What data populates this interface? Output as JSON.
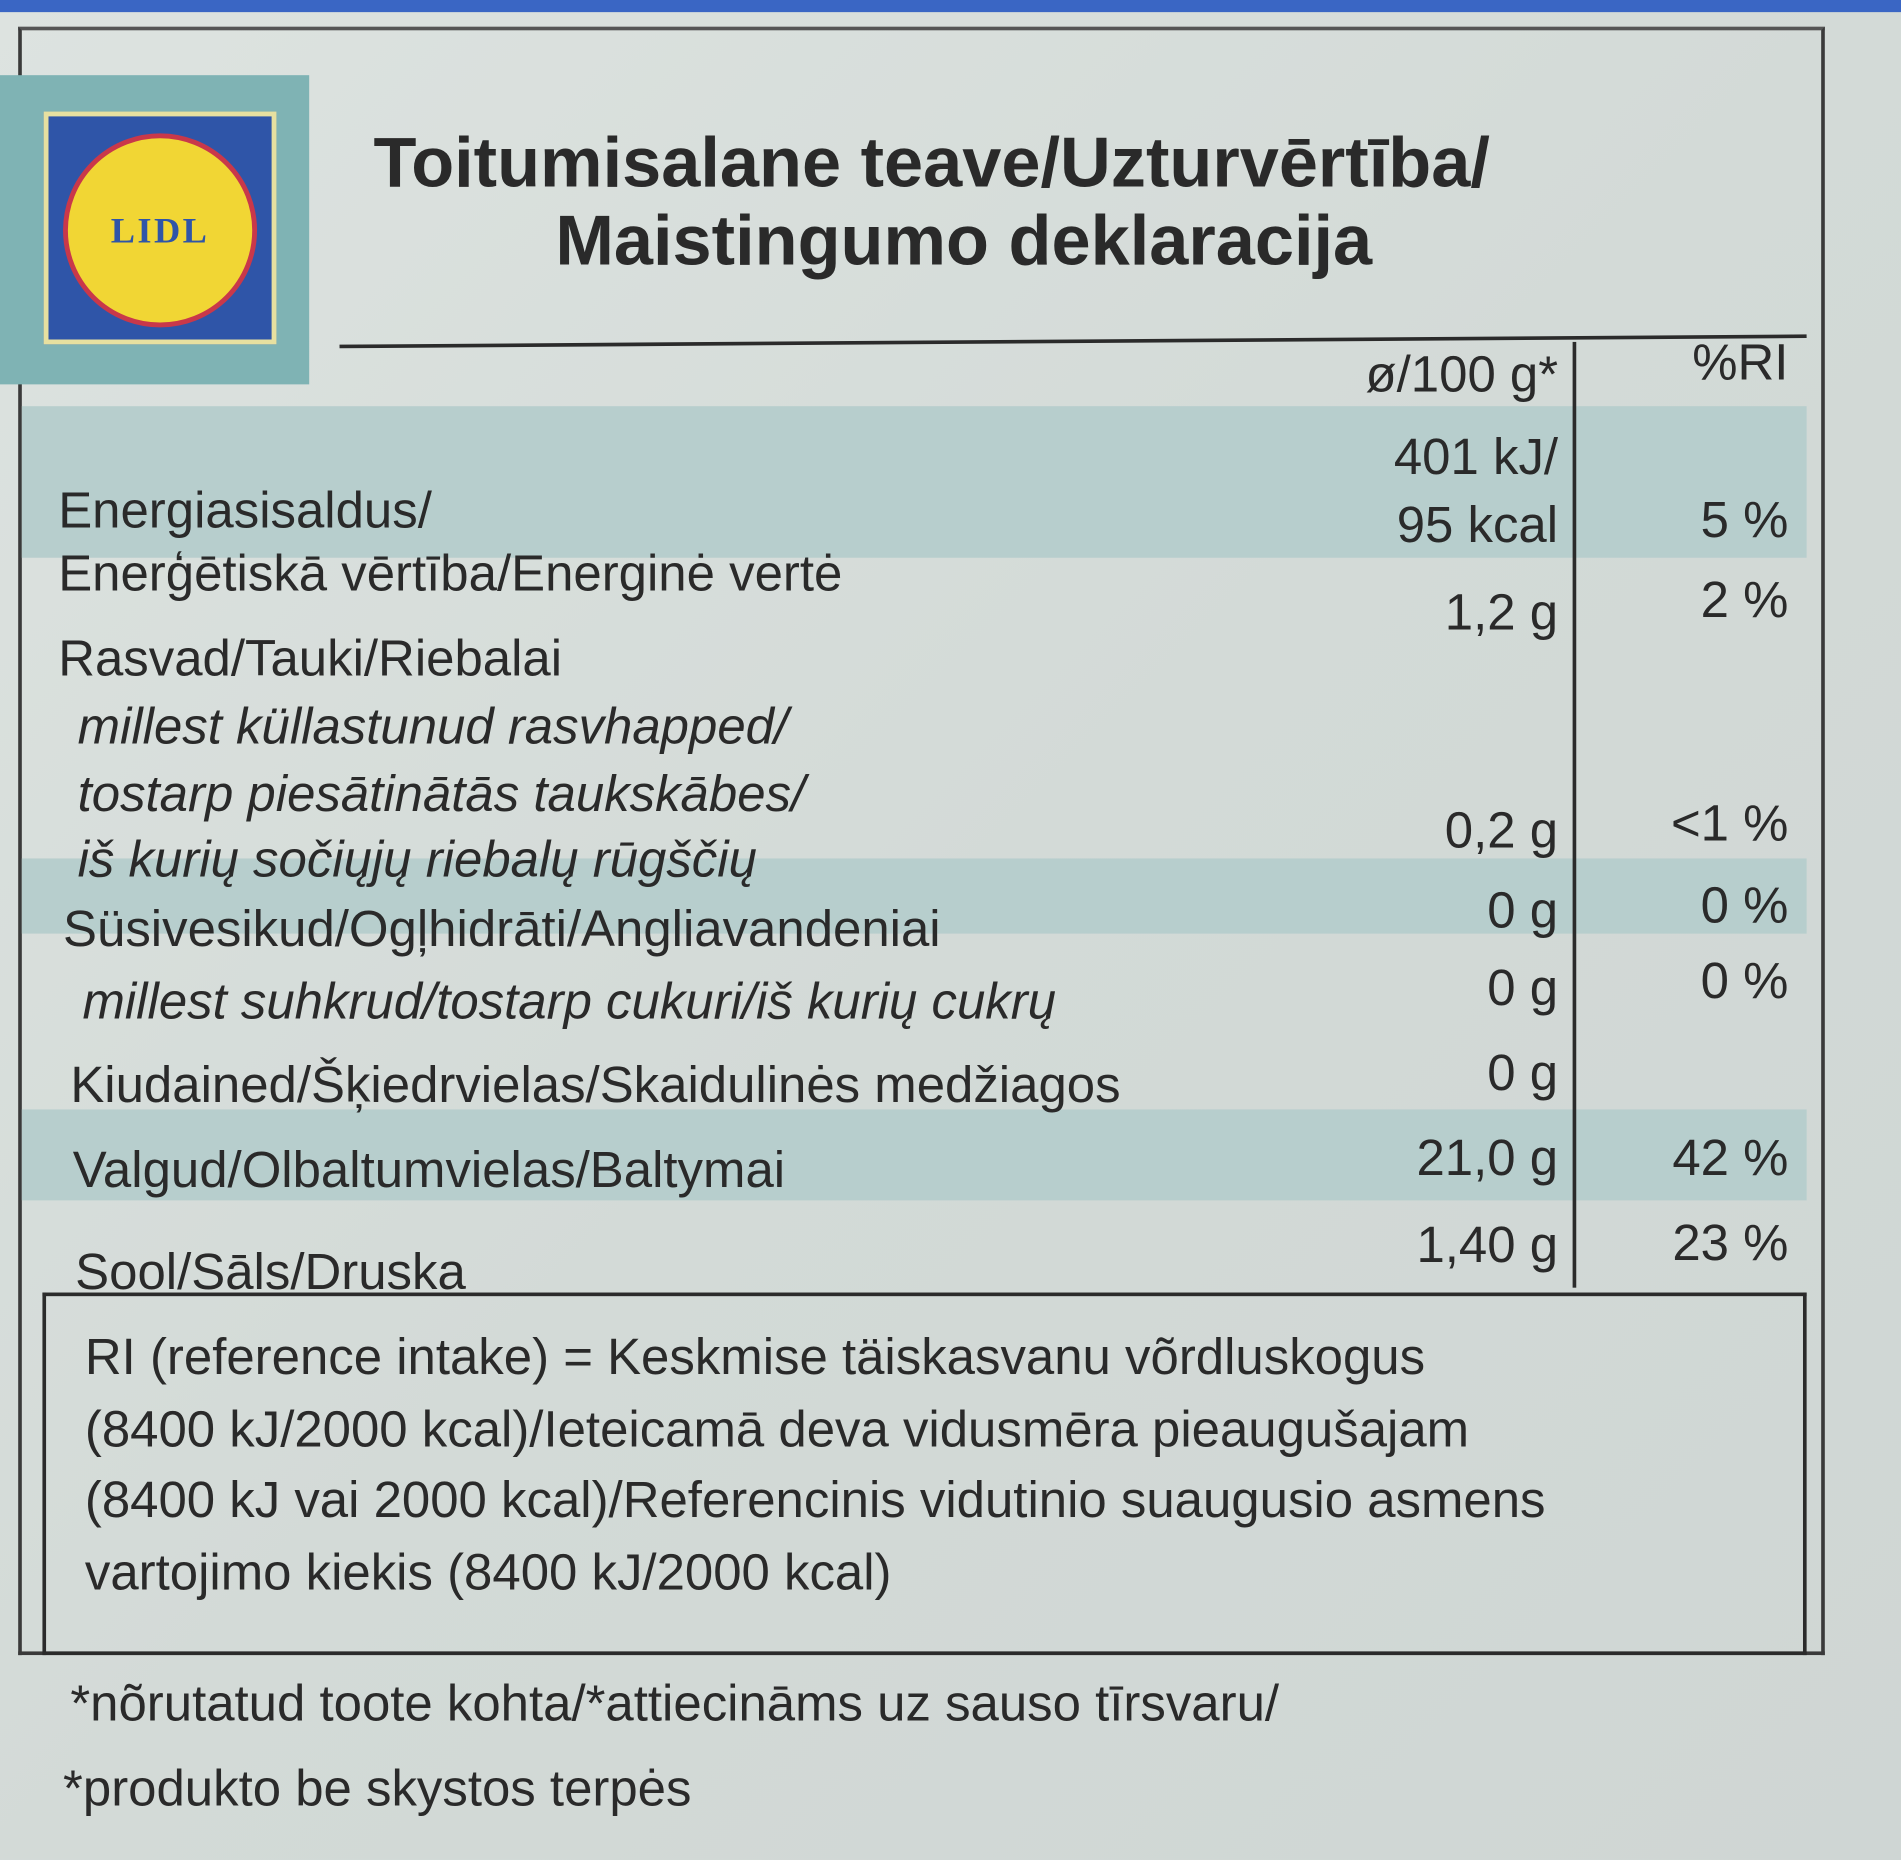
{
  "logo": "LIDL",
  "header": {
    "title": [
      "Toitumisalane teave/Uzturvērtība/",
      "Maistingumo deklaracija"
    ]
  },
  "table": {
    "columns": [
      "ø/100 g*",
      "%RI"
    ],
    "rows": [
      {
        "label": [
          "Energiasisaldus/",
          "Enerģētiskā vērtība/Energinė vertė"
        ],
        "value": [
          "401 kJ/",
          "95 kcal"
        ],
        "ri": "5 %"
      },
      {
        "label": [
          "Rasvad/Tauki/Riebalai"
        ],
        "value": [
          "1,2 g"
        ],
        "ri": "2 %"
      },
      {
        "label": [
          "millest küllastunud rasvhapped/",
          "tostarp piesātinātās taukskābes/",
          "iš kurių sočiųjų riebalų rūgščių"
        ],
        "value": [
          "0,2 g"
        ],
        "ri": "<1 %"
      },
      {
        "label": [
          "Süsivesikud/Ogļhidrāti/Angliavandeniai"
        ],
        "value": [
          "0 g"
        ],
        "ri": "0 %"
      },
      {
        "label": [
          "millest suhkrud/tostarp cukuri/iš kurių cukrų"
        ],
        "value": [
          "0 g"
        ],
        "ri": "0 %"
      },
      {
        "label": [
          "Kiudained/Šķiedrvielas/Skaidulinės medžiagos"
        ],
        "value": [
          "0 g"
        ]
      },
      {
        "label": [
          "Valgud/Olbaltumvielas/Baltymai"
        ],
        "value": [
          "21,0 g"
        ],
        "ri": "42 %"
      },
      {
        "label": [
          "Sool/Sāls/Druska"
        ],
        "value": [
          "1,40 g"
        ],
        "ri": "23 %"
      }
    ],
    "note": [
      "RI (reference intake) = Keskmise täiskasvanu võrdluskogus",
      "(8400 kJ/2000 kcal)/Ieteicamā deva vidusmēra pieaugušajam",
      "(8400 kJ vai 2000 kcal)/Referencinis vidutinio suaugusio asmens",
      "vartojimo kiekis (8400 kJ/2000 kcal)"
    ]
  },
  "footer": [
    "*nõrutatud toote kohta/*attiecināms uz sauso tīrsvaru/",
    "*produkto be skystos terpės"
  ]
}
